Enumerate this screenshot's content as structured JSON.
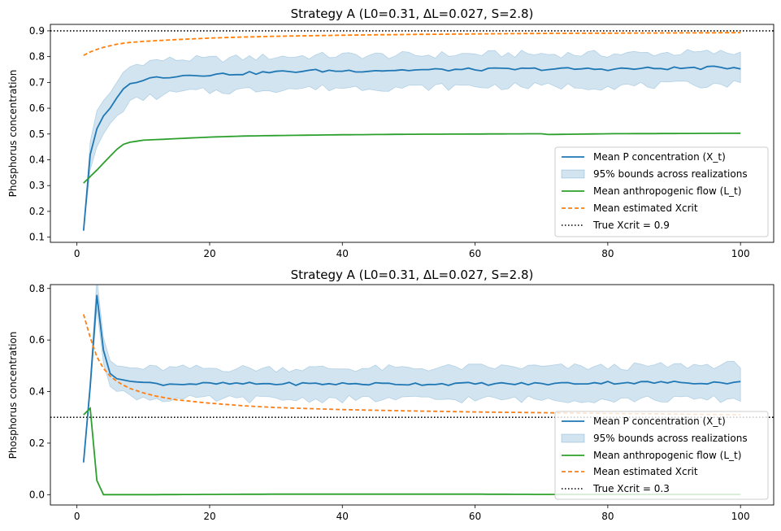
{
  "chart_data": [
    {
      "type": "line",
      "title": "Strategy A (L0=0.31, ΔL=0.027, S=2.8)",
      "xlabel": "",
      "ylabel": "Phosphorus concentration",
      "xlim": [
        -4,
        105
      ],
      "ylim": [
        0.08,
        0.925
      ],
      "xticks": [
        0,
        20,
        40,
        60,
        80,
        100
      ],
      "xtick_labels": [
        "0",
        "20",
        "40",
        "60",
        "80",
        "100"
      ],
      "yticks": [
        0.1,
        0.2,
        0.3,
        0.4,
        0.5,
        0.6,
        0.7,
        0.8,
        0.9
      ],
      "ytick_labels": [
        "0.1",
        "0.2",
        "0.3",
        "0.4",
        "0.5",
        "0.6",
        "0.7",
        "0.8",
        "0.9"
      ],
      "legend_position": "lower-right",
      "true_xcrit": 0.9,
      "series": [
        {
          "name": "Mean P concentration (X_t)",
          "key": "X",
          "color": "#1f77b4",
          "style": "solid",
          "x": [
            1,
            2,
            3,
            4,
            5,
            6,
            7,
            8,
            9,
            10,
            12,
            15,
            18,
            20,
            25,
            30,
            35,
            40,
            50,
            60,
            70,
            80,
            90,
            100
          ],
          "values": [
            0.125,
            0.42,
            0.52,
            0.57,
            0.6,
            0.64,
            0.675,
            0.695,
            0.705,
            0.71,
            0.72,
            0.725,
            0.73,
            0.73,
            0.735,
            0.74,
            0.745,
            0.745,
            0.748,
            0.75,
            0.752,
            0.752,
            0.755,
            0.758
          ]
        },
        {
          "name": "95% bounds across realizations",
          "key": "band",
          "color": "#1f77b4",
          "style": "band",
          "x": [
            1,
            2,
            3,
            4,
            5,
            6,
            7,
            8,
            9,
            10,
            12,
            15,
            18,
            20,
            25,
            30,
            40,
            50,
            60,
            70,
            80,
            90,
            100
          ],
          "lower": [
            0.125,
            0.36,
            0.45,
            0.5,
            0.54,
            0.57,
            0.6,
            0.62,
            0.63,
            0.64,
            0.645,
            0.66,
            0.665,
            0.665,
            0.67,
            0.675,
            0.68,
            0.68,
            0.685,
            0.685,
            0.685,
            0.69,
            0.695
          ],
          "upper": [
            0.125,
            0.47,
            0.59,
            0.63,
            0.66,
            0.7,
            0.74,
            0.76,
            0.77,
            0.78,
            0.785,
            0.79,
            0.79,
            0.79,
            0.795,
            0.8,
            0.805,
            0.805,
            0.81,
            0.81,
            0.81,
            0.815,
            0.815
          ]
        },
        {
          "name": "Mean anthropogenic flow (L_t)",
          "key": "L",
          "color": "#2ca02c",
          "style": "solid",
          "x": [
            1,
            2,
            3,
            4,
            5,
            6,
            7,
            8,
            9,
            10,
            15,
            20,
            25,
            30,
            40,
            50,
            60,
            70,
            71,
            80,
            90,
            100
          ],
          "values": [
            0.31,
            0.335,
            0.36,
            0.387,
            0.414,
            0.44,
            0.46,
            0.468,
            0.472,
            0.476,
            0.482,
            0.488,
            0.492,
            0.494,
            0.497,
            0.499,
            0.5,
            0.501,
            0.498,
            0.501,
            0.502,
            0.503
          ]
        },
        {
          "name": "Mean estimated Xcrit",
          "key": "E",
          "color": "#ff7f0e",
          "style": "dashed",
          "x": [
            1,
            2,
            3,
            4,
            5,
            6,
            7,
            8,
            9,
            10,
            12,
            15,
            20,
            25,
            30,
            40,
            50,
            60,
            70,
            80,
            90,
            100
          ],
          "values": [
            0.805,
            0.818,
            0.828,
            0.836,
            0.842,
            0.848,
            0.852,
            0.855,
            0.857,
            0.859,
            0.862,
            0.866,
            0.872,
            0.876,
            0.879,
            0.883,
            0.886,
            0.888,
            0.89,
            0.891,
            0.892,
            0.893
          ]
        },
        {
          "name": "True Xcrit = 0.9",
          "key": "T",
          "color": "#000000",
          "style": "dotted",
          "value": 0.9
        }
      ]
    },
    {
      "type": "line",
      "title": "Strategy A (L0=0.31, ΔL=0.027, S=2.8)",
      "xlabel": "",
      "ylabel": "Phosphorus concentration",
      "xlim": [
        -4,
        105
      ],
      "ylim": [
        -0.04,
        0.815
      ],
      "xticks": [
        0,
        20,
        40,
        60,
        80,
        100
      ],
      "xtick_labels": [
        "0",
        "20",
        "40",
        "60",
        "80",
        "100"
      ],
      "yticks": [
        0.0,
        0.2,
        0.4,
        0.6,
        0.8
      ],
      "ytick_labels": [
        "0.0",
        "0.2",
        "0.4",
        "0.6",
        "0.8"
      ],
      "legend_position": "lower-right",
      "true_xcrit": 0.3,
      "series": [
        {
          "name": "Mean P concentration (X_t)",
          "key": "X",
          "color": "#1f77b4",
          "style": "solid",
          "x": [
            1,
            2,
            3,
            4,
            5,
            6,
            8,
            10,
            12,
            15,
            20,
            30,
            40,
            50,
            60,
            70,
            80,
            90,
            100
          ],
          "values": [
            0.125,
            0.42,
            0.775,
            0.56,
            0.47,
            0.45,
            0.44,
            0.435,
            0.43,
            0.43,
            0.43,
            0.43,
            0.43,
            0.43,
            0.43,
            0.43,
            0.435,
            0.435,
            0.435
          ]
        },
        {
          "name": "95% bounds across realizations",
          "key": "band",
          "color": "#1f77b4",
          "style": "band",
          "x": [
            1,
            2,
            3,
            4,
            5,
            6,
            8,
            10,
            15,
            20,
            30,
            40,
            50,
            60,
            70,
            80,
            90,
            100
          ],
          "lower": [
            0.125,
            0.4,
            0.72,
            0.51,
            0.42,
            0.4,
            0.385,
            0.375,
            0.37,
            0.37,
            0.37,
            0.37,
            0.37,
            0.37,
            0.37,
            0.37,
            0.37,
            0.37
          ],
          "upper": [
            0.125,
            0.45,
            0.84,
            0.61,
            0.52,
            0.5,
            0.49,
            0.49,
            0.49,
            0.49,
            0.49,
            0.49,
            0.49,
            0.495,
            0.495,
            0.495,
            0.5,
            0.505
          ]
        },
        {
          "name": "Mean anthropogenic flow (L_t)",
          "key": "L",
          "color": "#2ca02c",
          "style": "solid",
          "x": [
            1,
            2,
            3,
            4,
            5,
            10,
            20,
            30,
            40,
            50,
            60,
            70,
            80,
            90,
            100
          ],
          "values": [
            0.31,
            0.335,
            0.055,
            0.0,
            0.0,
            0.0,
            0.001,
            0.002,
            0.002,
            0.002,
            0.002,
            0.001,
            0.001,
            0.001,
            0.001
          ]
        },
        {
          "name": "Mean estimated Xcrit",
          "key": "E",
          "color": "#ff7f0e",
          "style": "dashed",
          "x": [
            1,
            2,
            3,
            4,
            5,
            6,
            7,
            8,
            10,
            12,
            15,
            20,
            25,
            30,
            40,
            50,
            60,
            70,
            80,
            90,
            100
          ],
          "values": [
            0.7,
            0.61,
            0.535,
            0.49,
            0.46,
            0.44,
            0.425,
            0.412,
            0.395,
            0.382,
            0.368,
            0.355,
            0.345,
            0.338,
            0.33,
            0.325,
            0.321,
            0.318,
            0.315,
            0.313,
            0.31
          ]
        },
        {
          "name": "True Xcrit = 0.3",
          "key": "T",
          "color": "#000000",
          "style": "dotted",
          "value": 0.3
        }
      ]
    }
  ]
}
